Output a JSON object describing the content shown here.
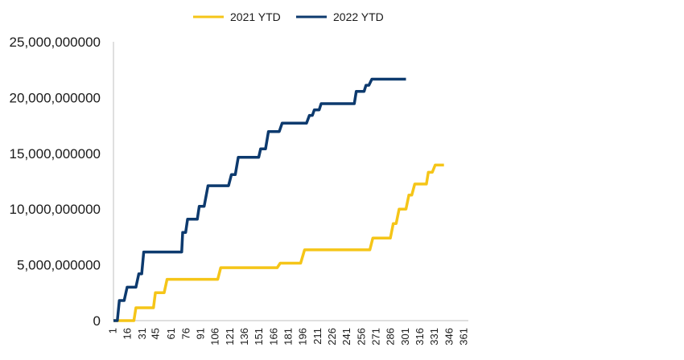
{
  "chart_data": {
    "type": "line",
    "title": "",
    "xlabel": "",
    "ylabel": "",
    "xlim": [
      1,
      365
    ],
    "ylim": [
      0,
      25000000000
    ],
    "y_ticks": [
      "0",
      "5,000,000000",
      "10,000,000000",
      "15,000,000000",
      "20,000,000000",
      "25,000,000000"
    ],
    "x_ticks": [
      1,
      16,
      31,
      45,
      61,
      76,
      91,
      106,
      121,
      136,
      151,
      166,
      181,
      196,
      211,
      226,
      241,
      256,
      271,
      286,
      301,
      316,
      331,
      346,
      361
    ],
    "grid": false,
    "legend_position": "top-center",
    "series": [
      {
        "name": "2021 YTD",
        "color": "#F5C518",
        "points": [
          [
            1,
            0
          ],
          [
            17,
            0
          ],
          [
            22,
            0
          ],
          [
            24,
            1150000000
          ],
          [
            42,
            1150000000
          ],
          [
            44,
            2500000000
          ],
          [
            53,
            2500000000
          ],
          [
            56,
            3700000000
          ],
          [
            108,
            3700000000
          ],
          [
            111,
            4750000000
          ],
          [
            169,
            4750000000
          ],
          [
            172,
            5150000000
          ],
          [
            193,
            5150000000
          ],
          [
            197,
            6350000000
          ],
          [
            264,
            6350000000
          ],
          [
            267,
            7400000000
          ],
          [
            285,
            7400000000
          ],
          [
            288,
            8700000000
          ],
          [
            291,
            8700000000
          ],
          [
            294,
            10000000000
          ],
          [
            301,
            10000000000
          ],
          [
            304,
            11250000000
          ],
          [
            307,
            11250000000
          ],
          [
            310,
            12250000000
          ],
          [
            322,
            12250000000
          ],
          [
            324,
            13300000000
          ],
          [
            328,
            13300000000
          ],
          [
            331,
            13950000000
          ],
          [
            340,
            13950000000
          ]
        ]
      },
      {
        "name": "2022 YTD",
        "color": "#0D3A6E",
        "points": [
          [
            1,
            0
          ],
          [
            5,
            0
          ],
          [
            7,
            1800000000
          ],
          [
            12,
            1800000000
          ],
          [
            15,
            3000000000
          ],
          [
            24,
            3000000000
          ],
          [
            27,
            4200000000
          ],
          [
            30,
            4200000000
          ],
          [
            32,
            6150000000
          ],
          [
            71,
            6150000000
          ],
          [
            72,
            7900000000
          ],
          [
            75,
            7900000000
          ],
          [
            77,
            9100000000
          ],
          [
            87,
            9100000000
          ],
          [
            89,
            10250000000
          ],
          [
            94,
            10250000000
          ],
          [
            98,
            12100000000
          ],
          [
            119,
            12100000000
          ],
          [
            122,
            13100000000
          ],
          [
            126,
            13100000000
          ],
          [
            129,
            14650000000
          ],
          [
            150,
            14650000000
          ],
          [
            152,
            15400000000
          ],
          [
            157,
            15400000000
          ],
          [
            160,
            16950000000
          ],
          [
            171,
            16950000000
          ],
          [
            174,
            17700000000
          ],
          [
            199,
            17700000000
          ],
          [
            202,
            18400000000
          ],
          [
            205,
            18400000000
          ],
          [
            207,
            18900000000
          ],
          [
            212,
            18900000000
          ],
          [
            214,
            19450000000
          ],
          [
            248,
            19450000000
          ],
          [
            250,
            20550000000
          ],
          [
            258,
            20550000000
          ],
          [
            260,
            21100000000
          ],
          [
            263,
            21100000000
          ],
          [
            266,
            21650000000
          ],
          [
            301,
            21650000000
          ]
        ]
      }
    ]
  }
}
